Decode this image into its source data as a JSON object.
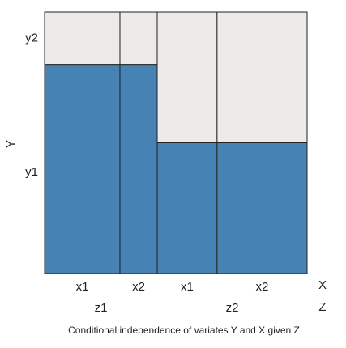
{
  "chart_data": {
    "type": "mosaic",
    "title": "Conditional independence of variates Y and X given Z",
    "xlabel": "X",
    "ylabel": "Y",
    "zlabel": "Z",
    "groups": [
      {
        "name": "z1",
        "categories": [
          "x1",
          "x2"
        ],
        "widths": [
          0.287,
          0.142
        ]
      },
      {
        "name": "z2",
        "categories": [
          "x1",
          "x2"
        ],
        "widths": [
          0.228,
          0.343
        ]
      }
    ],
    "series": [
      {
        "name": "y1",
        "color": "#4682b4",
        "values": [
          0.8,
          0.8,
          0.5,
          0.5
        ]
      },
      {
        "name": "y2",
        "color": "#edeaea",
        "values": [
          0.2,
          0.2,
          0.5,
          0.5
        ]
      }
    ]
  }
}
